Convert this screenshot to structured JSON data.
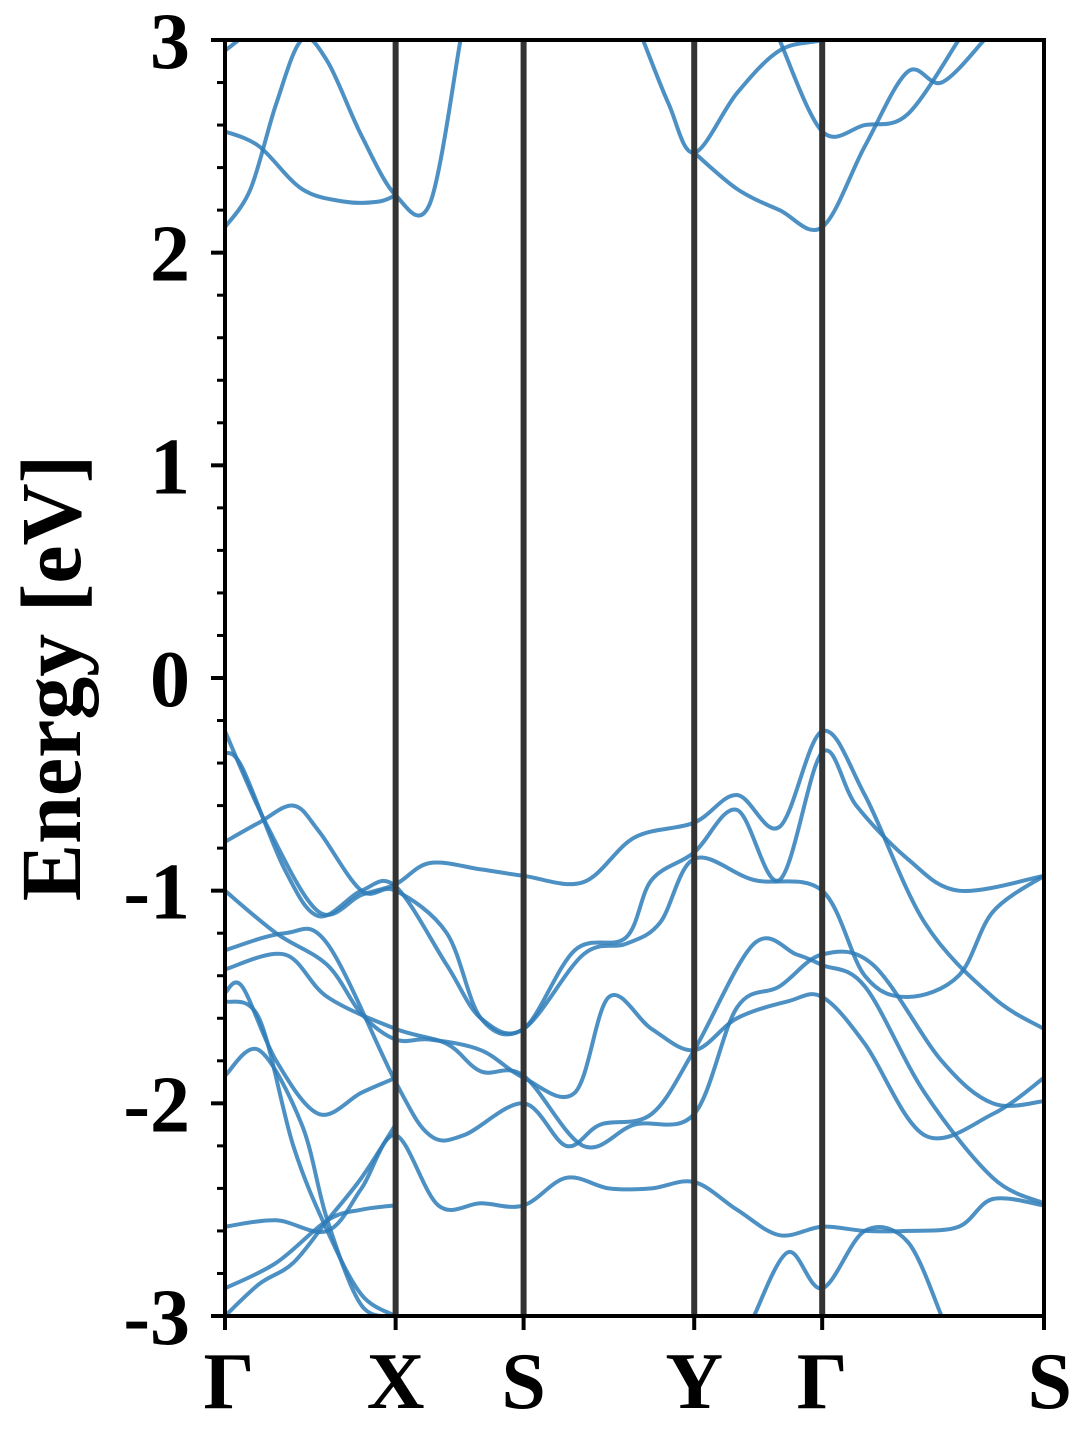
{
  "chart_data": {
    "type": "line",
    "title": "",
    "xlabel": "",
    "ylabel": "Energy [eV]",
    "ylim": [
      -3,
      3
    ],
    "yticks": [
      "-3",
      "-2",
      "-1",
      "0",
      "1",
      "2",
      "3"
    ],
    "y_minor_step": 0.2,
    "grid": false,
    "xrange": [
      0,
      4.8
    ],
    "high_symmetry_points": [
      {
        "label": "Γ",
        "x": 0
      },
      {
        "label": "X",
        "x": 1.0
      },
      {
        "label": "S",
        "x": 1.75
      },
      {
        "label": "Y",
        "x": 2.75
      },
      {
        "label": "Γ",
        "x": 3.5
      },
      {
        "label": "S",
        "x": 4.8
      }
    ],
    "line_color": "#2e7cb8",
    "vline_color": "#333333",
    "series": [
      {
        "x": [
          0,
          0.25,
          0.55,
          0.8,
          1.0,
          1.2,
          1.5,
          1.75,
          2.1,
          2.4,
          2.75,
          3.0,
          3.25,
          3.5,
          3.75,
          4.1,
          4.5,
          4.8
        ],
        "y": [
          -0.25,
          -0.7,
          -1.1,
          -1.02,
          -0.97,
          -0.87,
          -0.9,
          -0.93,
          -0.96,
          -0.75,
          -0.68,
          -0.55,
          -0.7,
          -0.25,
          -0.55,
          -1.15,
          -1.5,
          -1.65
        ]
      },
      {
        "x": [
          0,
          0.1,
          0.35,
          0.55,
          0.8,
          1.0,
          1.3,
          1.5,
          1.75,
          2.05,
          2.35,
          2.5,
          2.75,
          3.0,
          3.25,
          3.5,
          3.7,
          4.0,
          4.3,
          4.8
        ],
        "y": [
          -0.35,
          -0.42,
          -0.9,
          -1.12,
          -1.0,
          -0.98,
          -1.35,
          -1.6,
          -1.65,
          -1.28,
          -1.22,
          -0.95,
          -0.82,
          -0.62,
          -0.95,
          -0.35,
          -0.6,
          -0.85,
          -1.0,
          -0.93
        ]
      },
      {
        "x": [
          0,
          0.2,
          0.4,
          0.55,
          0.8,
          1.0,
          1.3,
          1.5,
          1.75,
          2.1,
          2.35,
          2.55,
          2.75,
          3.1,
          3.5,
          3.75,
          4.0,
          4.3,
          4.5,
          4.8
        ],
        "y": [
          -0.77,
          -0.68,
          -0.6,
          -0.72,
          -1.0,
          -1.0,
          -1.2,
          -1.6,
          -1.65,
          -1.3,
          -1.25,
          -1.15,
          -0.85,
          -0.95,
          -1.0,
          -1.4,
          -1.5,
          -1.4,
          -1.1,
          -0.93
        ]
      },
      {
        "x": [
          0,
          0.3,
          0.6,
          0.8,
          1.0,
          1.2,
          1.5,
          1.75,
          2.05,
          2.25,
          2.5,
          2.75,
          3.0,
          3.3,
          3.5,
          3.75,
          4.1,
          4.5,
          4.8
        ],
        "y": [
          -1.0,
          -1.2,
          -1.35,
          -1.58,
          -1.7,
          -1.7,
          -1.75,
          -1.88,
          -1.95,
          -1.5,
          -1.65,
          -1.75,
          -1.6,
          -1.52,
          -1.5,
          -1.72,
          -2.15,
          -2.05,
          -1.88
        ]
      },
      {
        "x": [
          0,
          0.35,
          0.6,
          1.0,
          1.2,
          1.4,
          1.75,
          2.0,
          2.2,
          2.5,
          2.75,
          3.1,
          3.35,
          3.5,
          3.75,
          4.1,
          4.5,
          4.8
        ],
        "y": [
          -1.28,
          -1.2,
          -1.25,
          -1.9,
          -2.15,
          -2.15,
          -2.0,
          -2.2,
          -2.1,
          -2.05,
          -1.75,
          -1.25,
          -1.3,
          -1.35,
          -1.45,
          -1.95,
          -2.35,
          -2.47
        ]
      },
      {
        "x": [
          0,
          0.35,
          0.6,
          1.0,
          1.3,
          1.5,
          1.75,
          2.1,
          2.4,
          2.75,
          3.0,
          3.25,
          3.5,
          3.8,
          4.2,
          4.5,
          4.8
        ],
        "y": [
          -1.37,
          -1.3,
          -1.5,
          -1.65,
          -1.72,
          -1.85,
          -1.87,
          -2.2,
          -2.1,
          -2.05,
          -1.55,
          -1.45,
          -1.3,
          -1.35,
          -1.8,
          -2.0,
          -1.99
        ]
      },
      {
        "x": [
          0,
          0.1,
          0.3,
          0.55,
          0.8,
          1.0
        ],
        "y": [
          -1.48,
          -1.45,
          -1.8,
          -2.05,
          -1.95,
          -1.88
        ]
      },
      {
        "x": [
          0,
          0.2,
          0.4,
          0.6,
          0.8,
          1.0
        ],
        "y": [
          -1.52,
          -1.6,
          -2.2,
          -2.6,
          -2.9,
          -3.0
        ]
      },
      {
        "x": [
          0,
          0.2,
          0.45,
          0.6,
          0.8,
          1.0
        ],
        "y": [
          -1.87,
          -1.75,
          -2.1,
          -2.55,
          -2.95,
          -3.0
        ]
      },
      {
        "x": [
          0,
          0.3,
          0.6,
          0.8,
          1.0,
          1.25,
          1.5,
          1.75,
          2.0,
          2.25,
          2.5,
          2.75,
          3.0,
          3.25,
          3.5,
          3.75,
          4.0,
          4.3,
          4.5,
          4.8
        ],
        "y": [
          -2.58,
          -2.55,
          -2.6,
          -2.4,
          -2.15,
          -2.48,
          -2.47,
          -2.48,
          -2.35,
          -2.4,
          -2.4,
          -2.37,
          -2.5,
          -2.62,
          -2.58,
          -2.6,
          -2.6,
          -2.58,
          -2.45,
          -2.48
        ]
      },
      {
        "x": [
          0,
          0.3,
          0.6,
          0.8,
          1.0
        ],
        "y": [
          -2.87,
          -2.75,
          -2.55,
          -2.5,
          -2.48
        ]
      },
      {
        "x": [
          0,
          0.2,
          0.4,
          0.6,
          0.8,
          1.0
        ],
        "y": [
          -3.0,
          -2.85,
          -2.75,
          -2.55,
          -2.35,
          -2.1
        ]
      },
      {
        "x": [
          3.1,
          3.3,
          3.5,
          3.75,
          4.0,
          4.2
        ],
        "y": [
          -3.0,
          -2.7,
          -2.87,
          -2.6,
          -2.65,
          -3.0
        ]
      },
      {
        "x": [
          0,
          0.15,
          0.3,
          0.45,
          0.6,
          0.8,
          1.0,
          1.2,
          1.38
        ],
        "y": [
          2.12,
          2.3,
          2.7,
          3.0,
          2.9,
          2.55,
          2.27,
          2.23,
          3.0
        ]
      },
      {
        "x": [
          0,
          0.2,
          0.45,
          0.7,
          0.9,
          1.0
        ],
        "y": [
          2.57,
          2.5,
          2.3,
          2.24,
          2.24,
          2.27
        ]
      },
      {
        "x": [
          0,
          0.08,
          0.15
        ],
        "y": [
          2.95,
          3.0,
          3.05
        ]
      },
      {
        "x": [
          2.45,
          2.6,
          2.75,
          3.0,
          3.25,
          3.5,
          3.75,
          3.95,
          4.2,
          4.4
        ],
        "y": [
          3.0,
          2.7,
          2.47,
          2.75,
          2.95,
          3.0,
          3.05,
          3.1,
          3.05,
          3.0
        ]
      },
      {
        "x": [
          2.75,
          3.0,
          3.25,
          3.5,
          3.75,
          4.0,
          4.2,
          4.45
        ],
        "y": [
          2.47,
          2.3,
          2.2,
          2.12,
          2.5,
          2.85,
          2.8,
          3.0
        ]
      },
      {
        "x": [
          3.25,
          3.5,
          3.75,
          4.0,
          4.3
        ],
        "y": [
          3.0,
          2.57,
          2.6,
          2.65,
          3.0
        ]
      }
    ]
  }
}
